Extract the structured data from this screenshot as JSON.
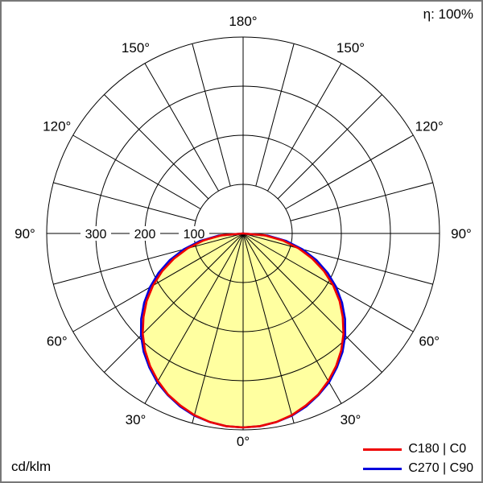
{
  "header": {
    "efficiency": "η: 100%"
  },
  "footer": {
    "unit": "cd/klm"
  },
  "chart_data": {
    "type": "polar",
    "variant": "luminous-intensity-distribution",
    "unit": "cd/klm",
    "efficiency_label": "η: 100%",
    "grid": true,
    "legend_position": "bottom-right",
    "curve_fill_color": "#ffffa0",
    "angular_axis": {
      "grid_step_deg": 15,
      "labels": [
        {
          "deg": 0,
          "text": "0°"
        },
        {
          "deg": 30,
          "text": "30°"
        },
        {
          "deg": 60,
          "text": "60°"
        },
        {
          "deg": 90,
          "text": "90°"
        },
        {
          "deg": 120,
          "text": "120°"
        },
        {
          "deg": 150,
          "text": "150°"
        },
        {
          "deg": 180,
          "text": "180°"
        }
      ]
    },
    "radial_axis": {
      "unit": "cd/klm",
      "max": 400,
      "circle_values": [
        100,
        200,
        300,
        400
      ],
      "tick_labels": [
        {
          "value": 300,
          "text": "300"
        },
        {
          "value": 200,
          "text": "200"
        },
        {
          "value": 100,
          "text": "100"
        }
      ]
    },
    "series": [
      {
        "name": "C180 | C0",
        "color": "#ee0000",
        "symmetric": true,
        "gamma_step_deg": 5,
        "gamma_max_deg": 90,
        "values": [
          395,
          394,
          390,
          383,
          373,
          362,
          347,
          330,
          311,
          289,
          265,
          240,
          212,
          182,
          150,
          117,
          82,
          44,
          0
        ]
      },
      {
        "name": "C270 | C90",
        "color": "#0000dd",
        "symmetric": true,
        "gamma_step_deg": 5,
        "gamma_max_deg": 90,
        "values": [
          395,
          394,
          390,
          384,
          375,
          363,
          350,
          333,
          315,
          294,
          271,
          246,
          219,
          190,
          159,
          125,
          89,
          50,
          0
        ]
      }
    ]
  }
}
